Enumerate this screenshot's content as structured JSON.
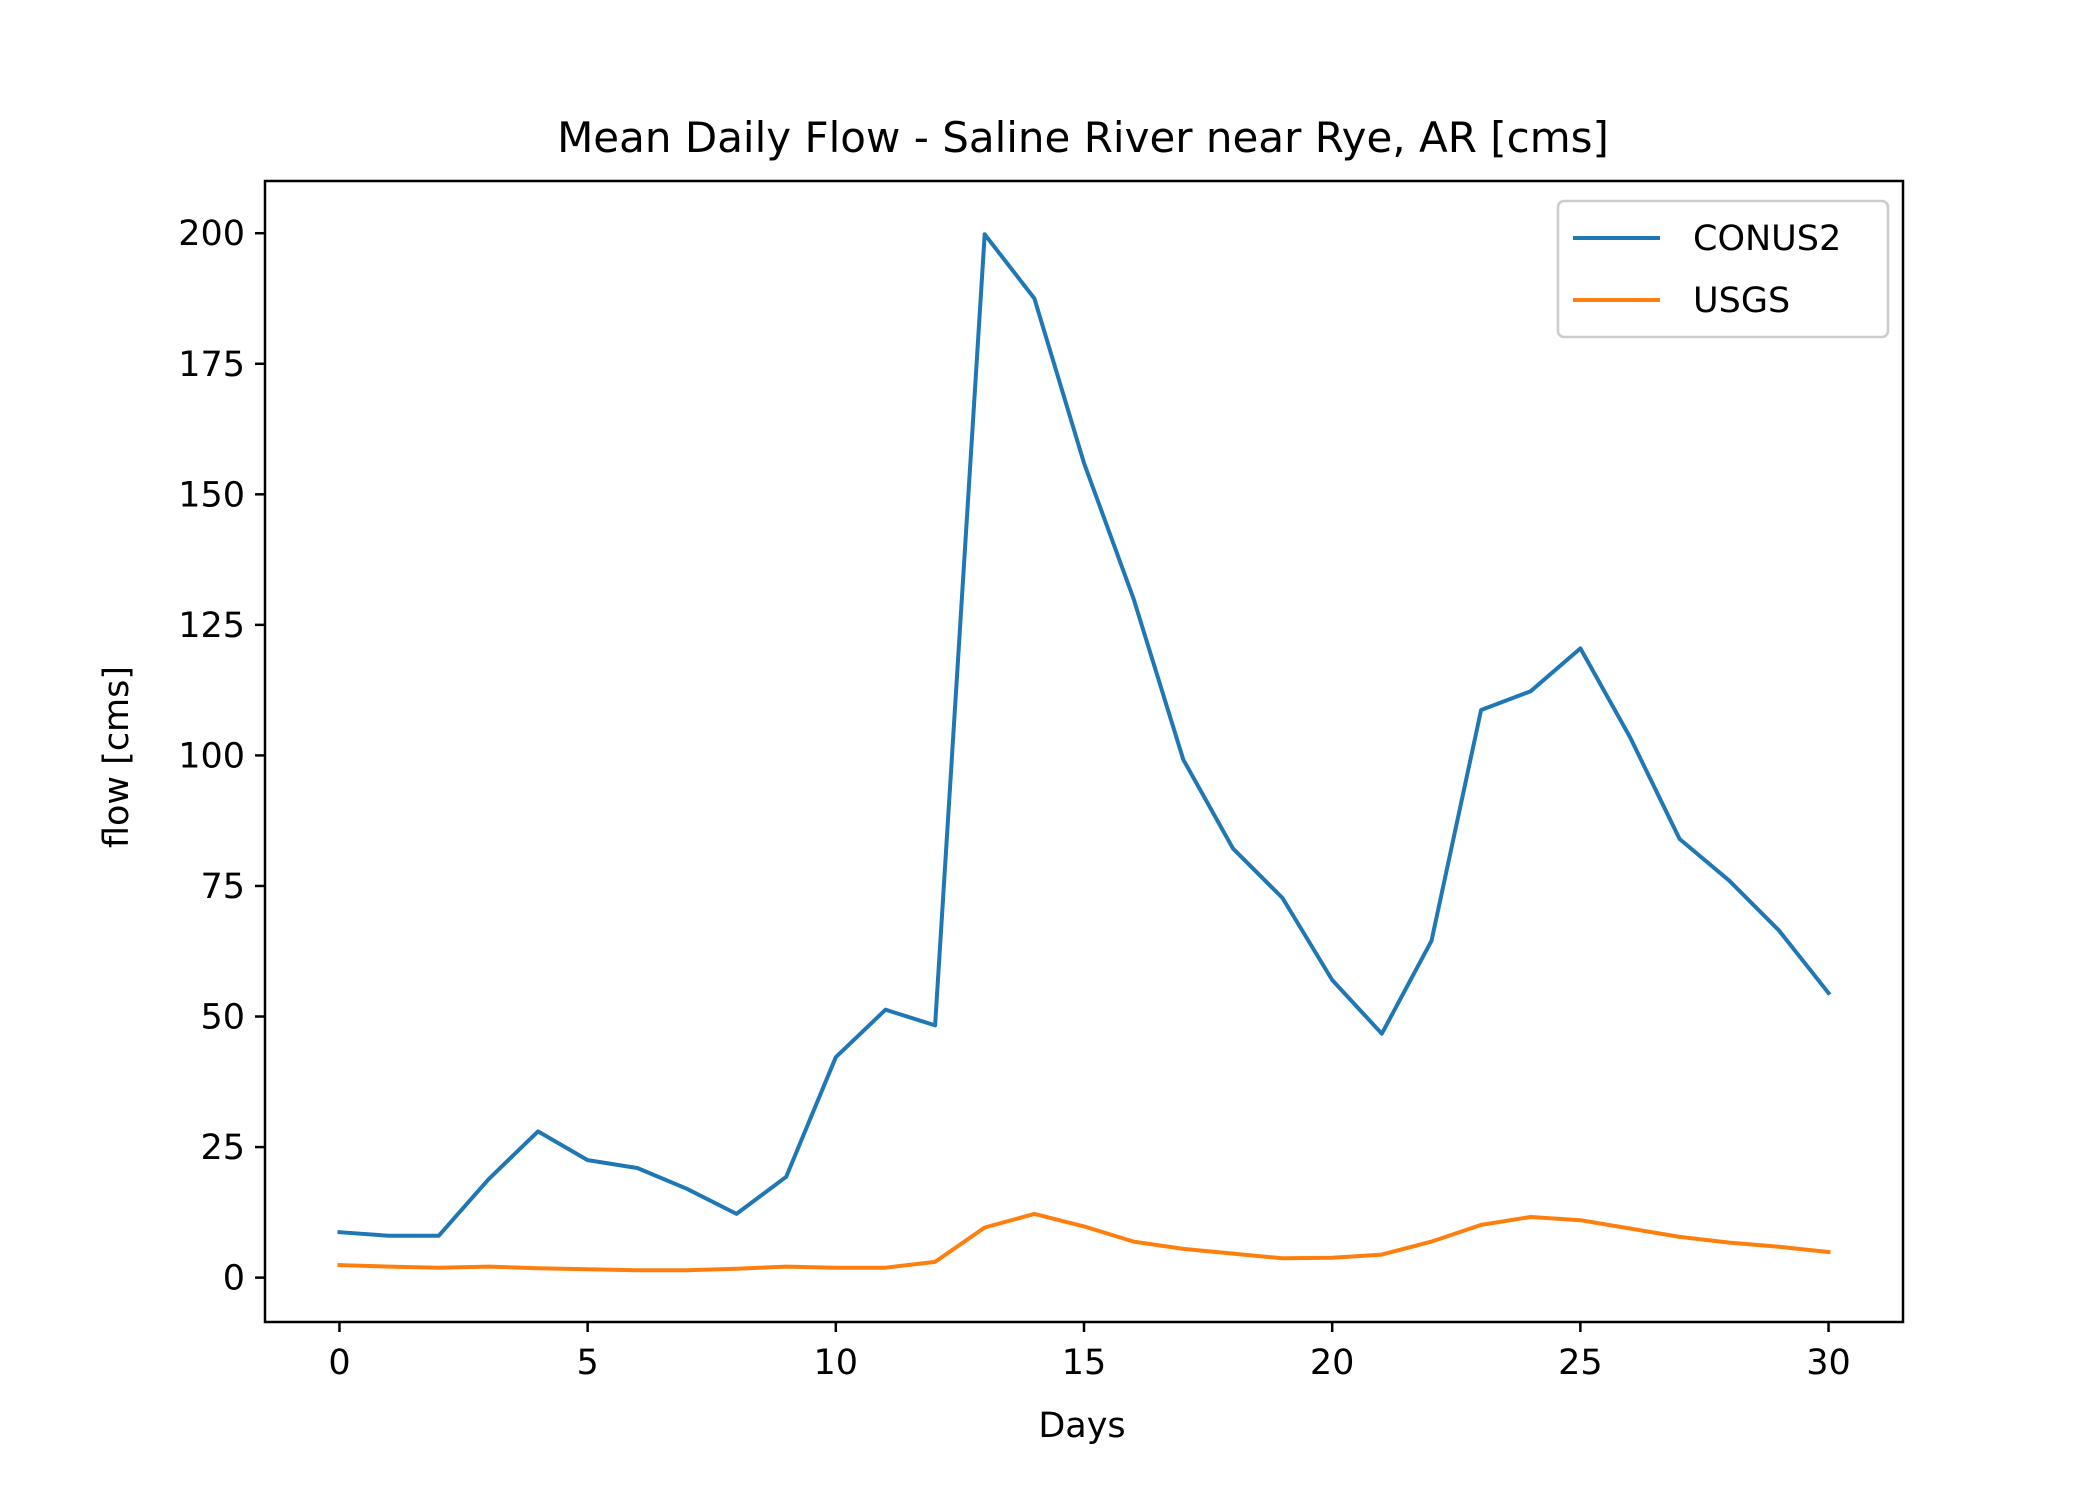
{
  "chart_data": {
    "type": "line",
    "title": "Mean Daily Flow - Saline River near Rye, AR [cms]",
    "xlabel": "Days",
    "ylabel": "flow [cms]",
    "xlim": [
      -1.5,
      31.5
    ],
    "ylim": [
      -8.5,
      210
    ],
    "xticks": [
      0,
      5,
      10,
      15,
      20,
      25,
      30
    ],
    "yticks": [
      0,
      25,
      50,
      75,
      100,
      125,
      150,
      175,
      200
    ],
    "grid": false,
    "legend_position": "top-right",
    "x": [
      0,
      1,
      2,
      3,
      4,
      5,
      6,
      7,
      8,
      9,
      10,
      11,
      12,
      13,
      14,
      15,
      16,
      17,
      18,
      19,
      20,
      21,
      22,
      23,
      24,
      25,
      26,
      27,
      28,
      29,
      30
    ],
    "series": [
      {
        "name": "CONUS2",
        "color": "#1f77b4",
        "values": [
          8.7,
          8.0,
          8.0,
          18.8,
          28.0,
          22.5,
          21.0,
          17.0,
          12.2,
          19.3,
          42.2,
          51.3,
          48.3,
          199.8,
          187.5,
          156.0,
          130.0,
          99.2,
          82.2,
          72.7,
          57.0,
          46.7,
          64.5,
          108.7,
          112.3,
          120.5,
          103.5,
          84.0,
          76.0,
          66.5,
          54.5
        ]
      },
      {
        "name": "USGS",
        "color": "#ff7f0e",
        "values": [
          2.4,
          2.1,
          1.9,
          2.1,
          1.8,
          1.6,
          1.4,
          1.4,
          1.7,
          2.1,
          1.9,
          1.9,
          3.0,
          9.6,
          12.2,
          9.8,
          6.9,
          5.5,
          4.6,
          3.7,
          3.8,
          4.4,
          6.9,
          10.1,
          11.6,
          11.0,
          9.4,
          7.8,
          6.7,
          5.9,
          4.9
        ]
      }
    ]
  }
}
